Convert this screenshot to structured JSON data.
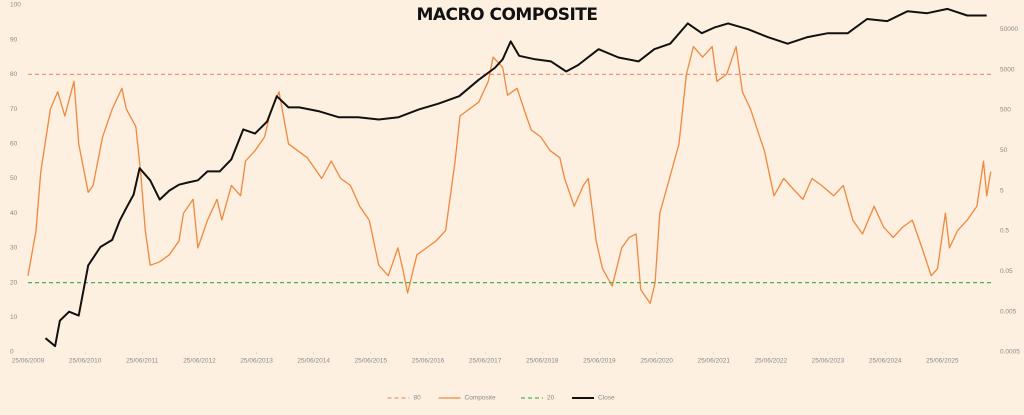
{
  "chart_data": {
    "type": "line",
    "title": "MACRO COMPOSITE",
    "xlim": [
      "2009-06-25",
      "2026-05-15"
    ],
    "xticks": [
      {
        "value": "2009-06-25",
        "label": "25/06/2009"
      },
      {
        "value": "2010-06-25",
        "label": "25/06/2010"
      },
      {
        "value": "2011-06-25",
        "label": "25/06/2011"
      },
      {
        "value": "2012-06-25",
        "label": "25/06/2012"
      },
      {
        "value": "2013-06-25",
        "label": "25/06/2013"
      },
      {
        "value": "2014-06-25",
        "label": "25/06/2014"
      },
      {
        "value": "2015-06-25",
        "label": "25/06/2015"
      },
      {
        "value": "2016-06-25",
        "label": "25/06/2016"
      },
      {
        "value": "2017-06-25",
        "label": "25/06/2017"
      },
      {
        "value": "2018-06-25",
        "label": "25/06/2018"
      },
      {
        "value": "2019-06-25",
        "label": "25/06/2019"
      },
      {
        "value": "2020-06-25",
        "label": "25/06/2020"
      },
      {
        "value": "2021-06-25",
        "label": "25/06/2021"
      },
      {
        "value": "2022-06-25",
        "label": "25/06/2022"
      },
      {
        "value": "2023-06-25",
        "label": "25/06/2023"
      },
      {
        "value": "2024-06-25",
        "label": "25/06/2024"
      },
      {
        "value": "2025-06-25",
        "label": "25/06/2025"
      }
    ],
    "ylim": [
      0,
      100
    ],
    "yticks": [
      0,
      10,
      20,
      30,
      40,
      50,
      60,
      70,
      80,
      90,
      100
    ],
    "y2lim": [
      0.0005,
      200000
    ],
    "y2log": true,
    "y2ticks": [
      0.0005,
      0.005,
      0.05,
      0.5,
      5,
      50,
      500,
      5000,
      50000
    ],
    "grid": false,
    "legend": "bottom",
    "series": [
      {
        "name": "80",
        "color": "#e8967a",
        "dashed": true,
        "x": [
          "2009-06-25",
          "2026-05-15"
        ],
        "values": [
          80,
          80
        ]
      },
      {
        "name": "Composite",
        "color": "#f0883e",
        "dashed": false,
        "x": [
          "2009-06-25",
          "2009-08-15",
          "2009-09-15",
          "2009-11-15",
          "2010-01-01",
          "2010-02-15",
          "2010-04-15",
          "2010-05-15",
          "2010-07-15",
          "2010-08-15",
          "2010-10-15",
          "2010-12-15",
          "2011-02-15",
          "2011-03-15",
          "2011-05-15",
          "2011-06-15",
          "2011-07-15",
          "2011-08-15",
          "2011-10-15",
          "2011-12-15",
          "2012-02-15",
          "2012-03-15",
          "2012-05-15",
          "2012-06-15",
          "2012-08-15",
          "2012-10-15",
          "2012-11-15",
          "2013-01-15",
          "2013-03-15",
          "2013-04-15",
          "2013-06-15",
          "2013-08-15",
          "2013-09-15",
          "2013-11-15",
          "2014-01-15",
          "2014-03-15",
          "2014-05-15",
          "2014-08-15",
          "2014-10-15",
          "2014-12-15",
          "2015-02-15",
          "2015-04-15",
          "2015-06-15",
          "2015-08-15",
          "2015-10-15",
          "2015-12-15",
          "2016-01-15",
          "2016-02-15",
          "2016-04-15",
          "2016-06-15",
          "2016-08-15",
          "2016-10-15",
          "2016-12-15",
          "2017-01-15",
          "2017-03-15",
          "2017-05-15",
          "2017-07-15",
          "2017-08-15",
          "2017-10-15",
          "2017-11-15",
          "2018-01-15",
          "2018-03-15",
          "2018-04-15",
          "2018-06-15",
          "2018-08-15",
          "2018-10-15",
          "2018-11-15",
          "2019-01-15",
          "2019-03-15",
          "2019-04-15",
          "2019-06-05",
          "2019-07-15",
          "2019-09-15",
          "2019-11-15",
          "2020-01-01",
          "2020-02-15",
          "2020-03-15",
          "2020-05-15",
          "2020-06-15",
          "2020-07-15",
          "2020-09-15",
          "2020-11-15",
          "2021-01-01",
          "2021-02-15",
          "2021-04-15",
          "2021-06-15",
          "2021-07-15",
          "2021-09-15",
          "2021-11-15",
          "2021-12-25",
          "2022-02-15",
          "2022-04-15",
          "2022-05-15",
          "2022-07-15",
          "2022-09-15",
          "2022-11-15",
          "2023-01-15",
          "2023-03-15",
          "2023-05-15",
          "2023-08-01",
          "2023-10-01",
          "2023-12-01",
          "2024-02-01",
          "2024-04-15",
          "2024-06-15",
          "2024-08-15",
          "2024-10-15",
          "2024-12-15",
          "2025-02-15",
          "2025-04-15",
          "2025-05-25",
          "2025-07-15",
          "2025-08-10",
          "2025-10-01",
          "2025-12-01",
          "2026-02-01",
          "2026-03-15",
          "2026-04-05",
          "2026-05-01"
        ],
        "values": [
          22,
          35,
          52,
          70,
          75,
          68,
          78,
          60,
          46,
          48,
          62,
          70,
          76,
          70,
          65,
          52,
          35,
          25,
          26,
          28,
          32,
          40,
          44,
          30,
          38,
          44,
          38,
          48,
          45,
          55,
          58,
          62,
          68,
          75,
          60,
          58,
          56,
          50,
          55,
          50,
          48,
          42,
          38,
          25,
          22,
          30,
          24,
          17,
          28,
          30,
          32,
          35,
          55,
          68,
          70,
          72,
          78,
          85,
          82,
          74,
          76,
          68,
          64,
          62,
          58,
          56,
          50,
          42,
          48,
          50,
          32,
          24,
          19,
          30,
          33,
          34,
          18,
          14,
          20,
          40,
          50,
          60,
          80,
          88,
          85,
          88,
          78,
          80,
          88,
          75,
          70,
          62,
          58,
          45,
          50,
          47,
          44,
          50,
          48,
          45,
          48,
          38,
          34,
          42,
          36,
          33,
          36,
          38,
          30,
          22,
          24,
          40,
          30,
          35,
          38,
          42,
          55,
          45,
          52
        ]
      },
      {
        "name": "20",
        "color": "#4caf50",
        "dashed": true,
        "x": [
          "2009-06-25",
          "2026-05-15"
        ],
        "values": [
          20,
          20
        ]
      },
      {
        "name": "Close",
        "color": "#111111",
        "dashed": false,
        "axis": "y2",
        "x": [
          "2009-10-15",
          "2009-12-15",
          "2010-01-15",
          "2010-03-15",
          "2010-05-15",
          "2010-07-15",
          "2010-10-01",
          "2010-12-15",
          "2011-02-01",
          "2011-03-20",
          "2011-05-01",
          "2011-06-08",
          "2011-08-15",
          "2011-10-15",
          "2011-12-15",
          "2012-02-15",
          "2012-04-15",
          "2012-06-15",
          "2012-08-15",
          "2012-11-01",
          "2013-01-15",
          "2013-04-01",
          "2013-06-15",
          "2013-09-01",
          "2013-11-01",
          "2014-01-15",
          "2014-03-25",
          "2014-08-01",
          "2014-12-01",
          "2015-04-05",
          "2015-08-15",
          "2015-12-20",
          "2016-04-25",
          "2016-09-01",
          "2017-01-10",
          "2017-05-15",
          "2017-08-25",
          "2017-10-15",
          "2017-12-05",
          "2018-01-28",
          "2018-05-10",
          "2018-08-20",
          "2018-11-25",
          "2019-02-10",
          "2019-06-20",
          "2019-10-25",
          "2020-03-01",
          "2020-06-10",
          "2020-09-20",
          "2021-01-10",
          "2021-04-10",
          "2021-06-28",
          "2021-09-25",
          "2022-02-01",
          "2022-06-05",
          "2022-10-10",
          "2023-02-15",
          "2023-06-25",
          "2023-10-30",
          "2024-03-01",
          "2024-07-08",
          "2024-11-15",
          "2025-03-20",
          "2025-07-28",
          "2025-12-01",
          "2026-04-05"
        ],
        "values": [
          0.0011,
          0.0007,
          0.003,
          0.005,
          0.004,
          0.07,
          0.2,
          0.3,
          0.9,
          2,
          4,
          18,
          9,
          3,
          5,
          7,
          8,
          9,
          15,
          15,
          30,
          165,
          130,
          260,
          1100,
          580,
          580,
          460,
          330,
          330,
          290,
          330,
          510,
          720,
          1100,
          2800,
          5500,
          9000,
          25000,
          11000,
          9000,
          8000,
          4500,
          6500,
          16000,
          10000,
          8000,
          16000,
          22000,
          70000,
          40000,
          55000,
          70000,
          50000,
          32000,
          22000,
          32000,
          40000,
          40000,
          90000,
          80000,
          140000,
          125000,
          160000,
          110000,
          110000
        ]
      }
    ]
  }
}
